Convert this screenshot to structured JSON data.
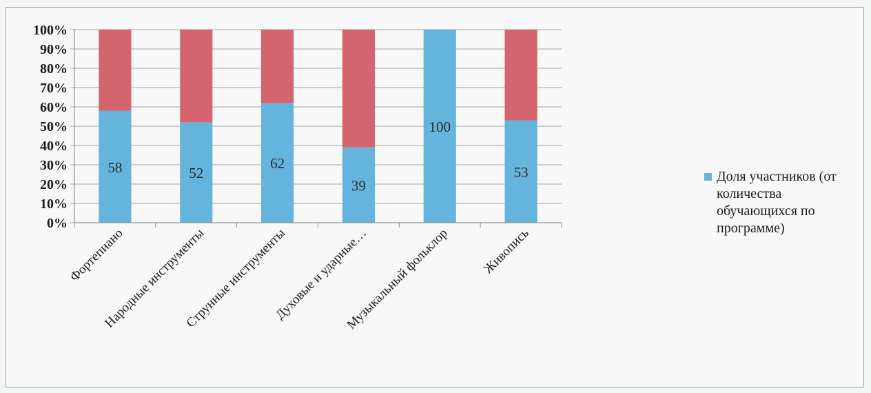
{
  "chart_data": {
    "type": "bar",
    "stacked": true,
    "categories": [
      "Фортепиано",
      "Народные инструменты",
      "Струнные инструменты",
      "Духовые и ударные…",
      "Музыкальный фольклор",
      "Живопись"
    ],
    "series": [
      {
        "name": "Доля участников (от количества обучающихся по программе)",
        "values": [
          58,
          52,
          62,
          39,
          100,
          53
        ],
        "color": "#64b4de"
      },
      {
        "name": "",
        "values": [
          42,
          48,
          38,
          61,
          0,
          47
        ],
        "color": "#d4646d"
      }
    ],
    "data_labels": [
      "58",
      "52",
      "62",
      "39",
      "100",
      "53"
    ],
    "y_ticks": [
      "0%",
      "10%",
      "20%",
      "30%",
      "40%",
      "50%",
      "60%",
      "70%",
      "80%",
      "90%",
      "100%"
    ],
    "ylim": [
      0,
      100
    ],
    "grid": true,
    "legend_position": "right",
    "title": "",
    "xlabel": "",
    "ylabel": ""
  }
}
